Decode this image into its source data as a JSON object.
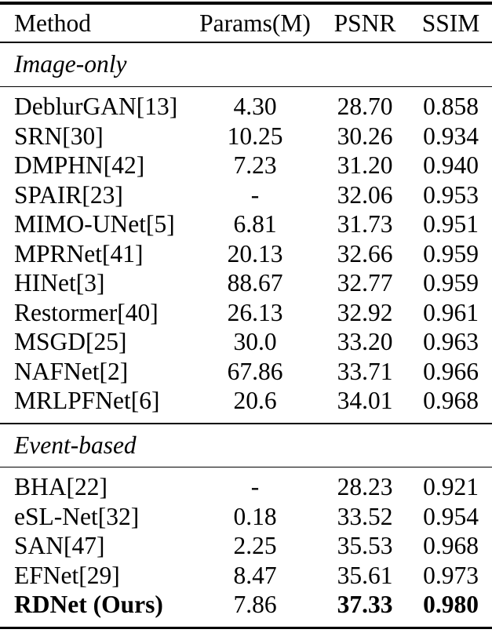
{
  "table": {
    "columns": [
      "Method",
      "Params(M)",
      "PSNR",
      "SSIM"
    ],
    "sections": [
      {
        "label": "Image-only",
        "rows": [
          {
            "method": "DeblurGAN[13]",
            "params": "4.30",
            "psnr": "28.70",
            "ssim": "0.858"
          },
          {
            "method": "SRN[30]",
            "params": "10.25",
            "psnr": "30.26",
            "ssim": "0.934"
          },
          {
            "method": "DMPHN[42]",
            "params": "7.23",
            "psnr": "31.20",
            "ssim": "0.940"
          },
          {
            "method": "SPAIR[23]",
            "params": "-",
            "psnr": "32.06",
            "ssim": "0.953"
          },
          {
            "method": "MIMO-UNet[5]",
            "params": "6.81",
            "psnr": "31.73",
            "ssim": "0.951"
          },
          {
            "method": "MPRNet[41]",
            "params": "20.13",
            "psnr": "32.66",
            "ssim": "0.959"
          },
          {
            "method": "HINet[3]",
            "params": "88.67",
            "psnr": "32.77",
            "ssim": "0.959"
          },
          {
            "method": "Restormer[40]",
            "params": "26.13",
            "psnr": "32.92",
            "ssim": "0.961"
          },
          {
            "method": "MSGD[25]",
            "params": "30.0",
            "psnr": "33.20",
            "ssim": "0.963"
          },
          {
            "method": "NAFNet[2]",
            "params": "67.86",
            "psnr": "33.71",
            "ssim": "0.966"
          },
          {
            "method": "MRLPFNet[6]",
            "params": "20.6",
            "psnr": "34.01",
            "ssim": "0.968"
          }
        ]
      },
      {
        "label": "Event-based",
        "rows": [
          {
            "method": "BHA[22]",
            "params": "-",
            "psnr": "28.23",
            "ssim": "0.921"
          },
          {
            "method": "eSL-Net[32]",
            "params": "0.18",
            "psnr": "33.52",
            "ssim": "0.954"
          },
          {
            "method": "SAN[47]",
            "params": "2.25",
            "psnr": "35.53",
            "ssim": "0.968"
          },
          {
            "method": "EFNet[29]",
            "params": "8.47",
            "psnr": "35.61",
            "ssim": "0.973"
          },
          {
            "method": "RDNet (Ours)",
            "params": "7.86",
            "psnr": "37.33",
            "ssim": "0.980"
          }
        ]
      }
    ],
    "colors": {
      "text": "#000000",
      "background": "#ffffff",
      "rule": "#000000"
    }
  }
}
